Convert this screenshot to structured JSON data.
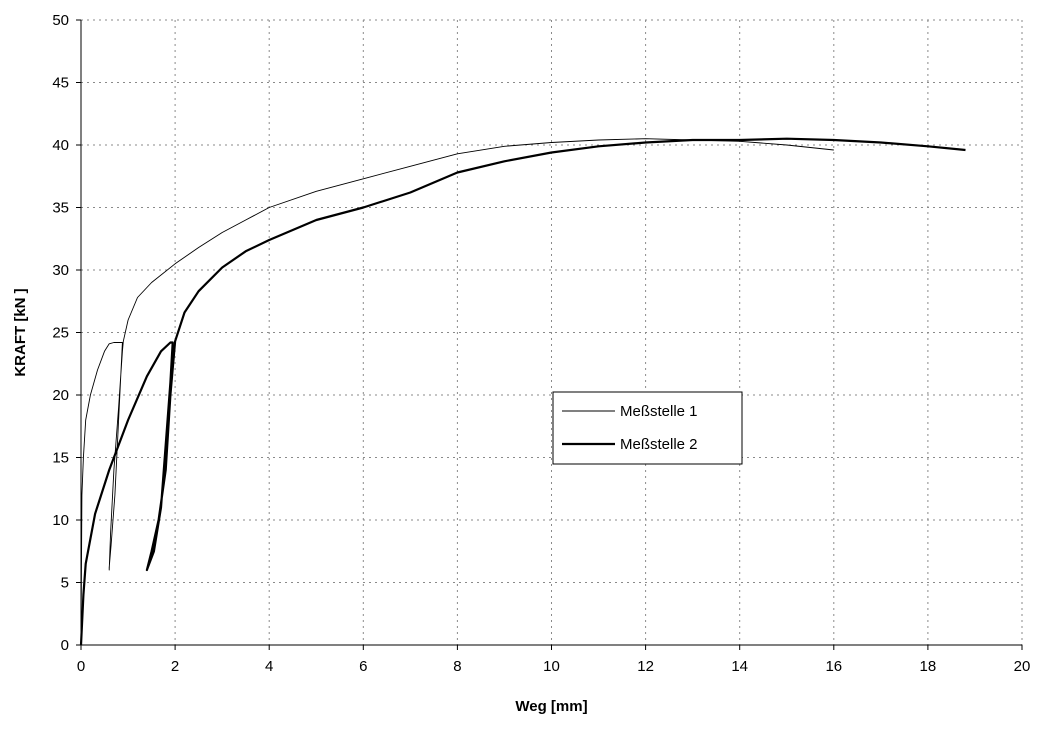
{
  "chart_data": {
    "type": "line",
    "title": "",
    "xlabel": "Weg [mm]",
    "ylabel": "KRAFT  [kN ]",
    "xlim": [
      0,
      20
    ],
    "ylim": [
      0,
      50
    ],
    "xticks": [
      0,
      2,
      4,
      6,
      8,
      10,
      12,
      14,
      16,
      18,
      20
    ],
    "yticks": [
      0,
      5,
      10,
      15,
      20,
      25,
      30,
      35,
      40,
      45,
      50
    ],
    "grid": true,
    "legend_position": "center-right",
    "series": [
      {
        "name": "Meßstelle 1",
        "color": "#000000",
        "weight": "thin",
        "x": [
          0,
          0.02,
          0.05,
          0.1,
          0.2,
          0.35,
          0.5,
          0.6,
          0.7,
          0.8,
          0.88,
          0.8,
          0.72,
          0.64,
          0.6,
          0.6,
          0.63,
          0.7,
          0.8,
          0.88,
          0.9,
          1.0,
          1.2,
          1.5,
          2.0,
          2.5,
          3.0,
          3.5,
          4.0,
          5.0,
          6.0,
          7.0,
          8.0,
          9.0,
          10.0,
          11.0,
          12.0,
          13.0,
          14.0,
          15.0,
          16.0
        ],
        "y": [
          0,
          12,
          15,
          18,
          20,
          22,
          23.5,
          24.1,
          24.2,
          24.2,
          24.2,
          18,
          12,
          8,
          6.2,
          6,
          9,
          14,
          19,
          23.5,
          24.3,
          26,
          27.8,
          29,
          30.5,
          31.8,
          33,
          34,
          35,
          36.3,
          37.3,
          38.3,
          39.3,
          39.9,
          40.2,
          40.4,
          40.5,
          40.4,
          40.3,
          40.0,
          39.6
        ]
      },
      {
        "name": "Meßstelle 2",
        "color": "#000000",
        "weight": "thick",
        "x": [
          0,
          0.05,
          0.1,
          0.3,
          0.6,
          1.0,
          1.4,
          1.7,
          1.9,
          1.95,
          1.9,
          1.8,
          1.7,
          1.55,
          1.42,
          1.4,
          1.5,
          1.65,
          1.8,
          1.9,
          2.0,
          2.2,
          2.5,
          3.0,
          3.5,
          4.0,
          5.0,
          6.0,
          7.0,
          8.0,
          9.0,
          10.0,
          11.0,
          12.0,
          13.0,
          14.0,
          15.0,
          16.0,
          17.0,
          18.0,
          18.8
        ],
        "y": [
          0,
          4,
          6.5,
          10.5,
          14,
          18,
          21.5,
          23.5,
          24.2,
          24.2,
          21,
          16,
          11,
          7.5,
          6.2,
          6,
          7.5,
          10,
          14,
          20,
          24.3,
          26.6,
          28.3,
          30.2,
          31.5,
          32.4,
          34,
          35,
          36.2,
          37.8,
          38.7,
          39.4,
          39.9,
          40.2,
          40.4,
          40.4,
          40.5,
          40.4,
          40.2,
          39.9,
          39.6
        ]
      }
    ]
  }
}
